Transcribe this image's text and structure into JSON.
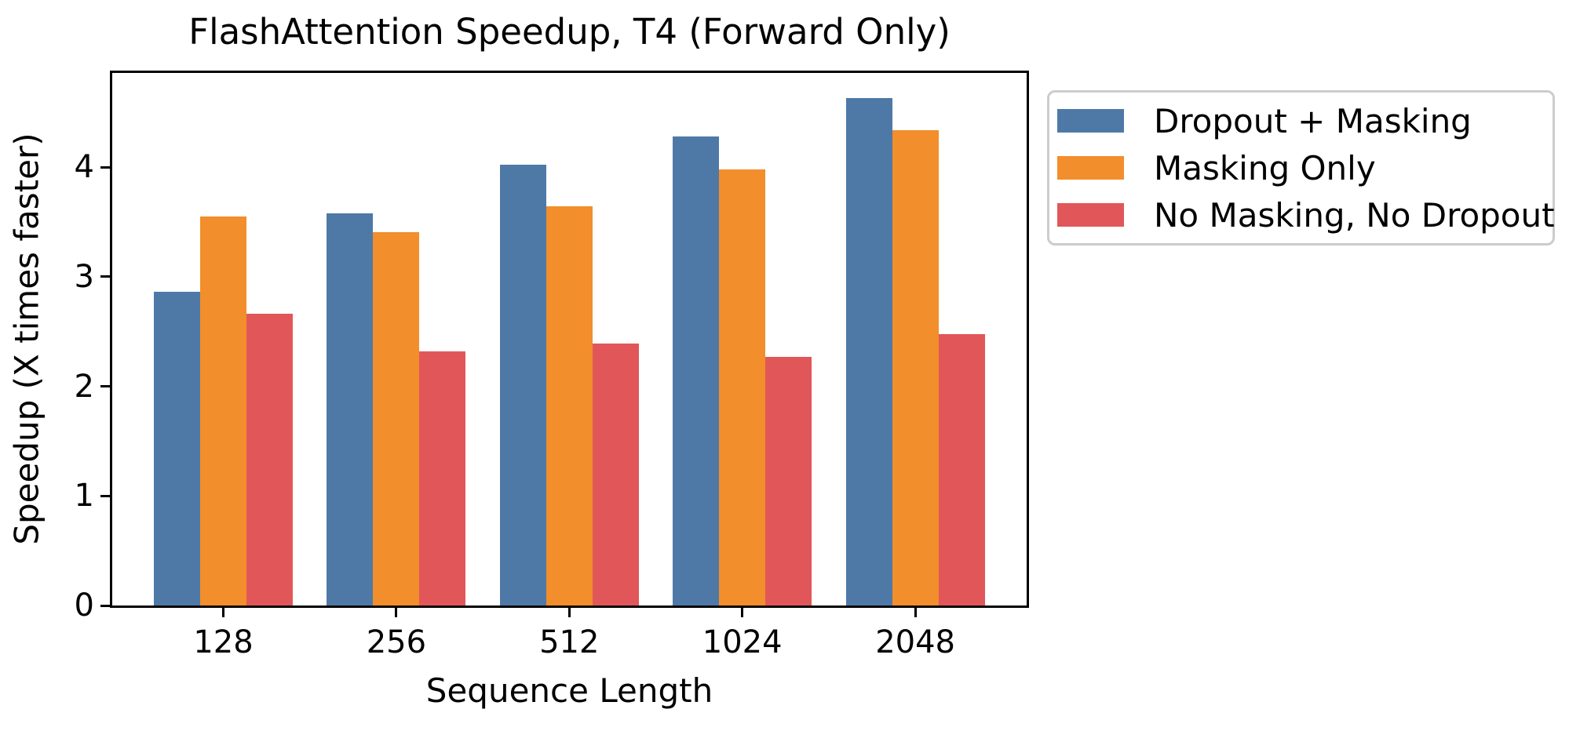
{
  "chart_data": {
    "type": "bar",
    "title": "FlashAttention Speedup, T4 (Forward Only)",
    "xlabel": "Sequence Length",
    "ylabel": "Speedup (X times faster)",
    "categories": [
      "128",
      "256",
      "512",
      "1024",
      "2048"
    ],
    "series": [
      {
        "name": "Dropout + Masking",
        "color": "#4e79a7",
        "values": [
          2.86,
          3.58,
          4.02,
          4.28,
          4.63
        ]
      },
      {
        "name": "Masking Only",
        "color": "#f28e2b",
        "values": [
          3.55,
          3.41,
          3.64,
          3.98,
          4.34
        ]
      },
      {
        "name": "No Masking, No Dropout",
        "color": "#e15759",
        "values": [
          2.66,
          2.32,
          2.39,
          2.27,
          2.48
        ]
      }
    ],
    "yticks": [
      0,
      1,
      2,
      3,
      4
    ],
    "ylim": [
      0,
      4.86
    ],
    "grid": false,
    "legend_position": "outside-upper-right",
    "legend_border_color": "#cccccc",
    "axis_color": "#000000"
  }
}
